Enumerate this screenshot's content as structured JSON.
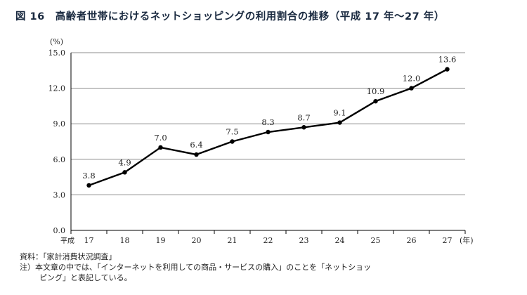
{
  "figure_title": "図 16　高齢者世帯におけるネットショッピングの利用割合の推移（平成 17 年～27 年）",
  "chart_data": {
    "type": "line",
    "title": "図 16　高齢者世帯におけるネットショッピングの利用割合の推移（平成 17 年～27 年）",
    "y_unit": "(%)",
    "x_unit": "(年)",
    "x_prefix": "平成",
    "categories": [
      "17",
      "18",
      "19",
      "20",
      "21",
      "22",
      "23",
      "24",
      "25",
      "26",
      "27"
    ],
    "values": [
      3.8,
      4.9,
      7.0,
      6.4,
      7.5,
      8.3,
      8.7,
      9.1,
      10.9,
      12.0,
      13.6
    ],
    "value_labels": [
      "3.8",
      "4.9",
      "7.0",
      "6.4",
      "7.5",
      "8.3",
      "8.7",
      "9.1",
      "10.9",
      "12.0",
      "13.6"
    ],
    "ylim": [
      0,
      15
    ],
    "y_ticks": [
      0,
      3,
      6,
      9,
      12,
      15
    ],
    "y_tick_labels": [
      "0.0",
      "3.0",
      "6.0",
      "9.0",
      "12.0",
      "15.0"
    ],
    "grid": true,
    "legend": false,
    "line_color": "#000000",
    "grid_color": "#8c8c8c"
  },
  "notes": {
    "source": "資料：「家計消費状況調査」",
    "note_line1": "注）本文章の中では、「インターネットを利用しての商品・サービスの購入」のことを「ネットショッ",
    "note_line2": "ピング」と表記している。"
  }
}
